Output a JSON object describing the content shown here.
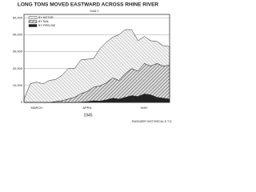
{
  "chart_data": {
    "type": "stacked_area",
    "title": "LONG TONS MOVED EASTWARD ACROSS RHINE RIVER",
    "subtitle": "DAILY",
    "year_label": "1945",
    "footnote": "ENGINEER HISTORICAL E.T.O.",
    "categories": [
      null,
      null,
      "MARCH",
      null,
      null,
      null,
      null,
      null,
      null,
      null,
      "APRIL",
      null,
      null,
      null,
      null,
      null,
      null,
      null,
      null,
      "MAY",
      null,
      null,
      null,
      null
    ],
    "series": [
      {
        "name": "BY PIPELINE",
        "color": "#222222",
        "values": [
          0,
          0,
          0,
          0,
          0,
          0,
          0,
          0,
          0,
          200,
          500,
          1000,
          800,
          1500,
          2500,
          2000,
          3000,
          4000,
          3500,
          5000,
          4500,
          3000,
          2500,
          2000
        ]
      },
      {
        "name": "BY RAIL",
        "color": "#777777",
        "values": [
          0,
          0,
          0,
          0,
          0,
          500,
          1000,
          2000,
          3000,
          5000,
          6000,
          8000,
          9000,
          10000,
          12000,
          11000,
          14000,
          16000,
          15000,
          18000,
          17000,
          20000,
          19000,
          20000
        ]
      },
      {
        "name": "BY MOTOR",
        "color": "#bbbbbb",
        "values": [
          2000,
          11000,
          12000,
          11000,
          13000,
          13000,
          15000,
          18000,
          17000,
          20000,
          19000,
          17000,
          22000,
          24000,
          24000,
          27000,
          26000,
          23000,
          18000,
          16000,
          15000,
          13000,
          12000,
          11000
        ]
      }
    ],
    "ylim": [
      0,
      52000
    ],
    "yticks": [
      0,
      {
        "value": 10000,
        "label": "10,000"
      },
      {
        "value": 20000,
        "label": "20,000"
      },
      {
        "value": 30000,
        "label": "30,000"
      },
      {
        "value": 40000,
        "label": "40,000"
      },
      {
        "value": 50000,
        "label": "50,000"
      }
    ],
    "grid": true
  }
}
